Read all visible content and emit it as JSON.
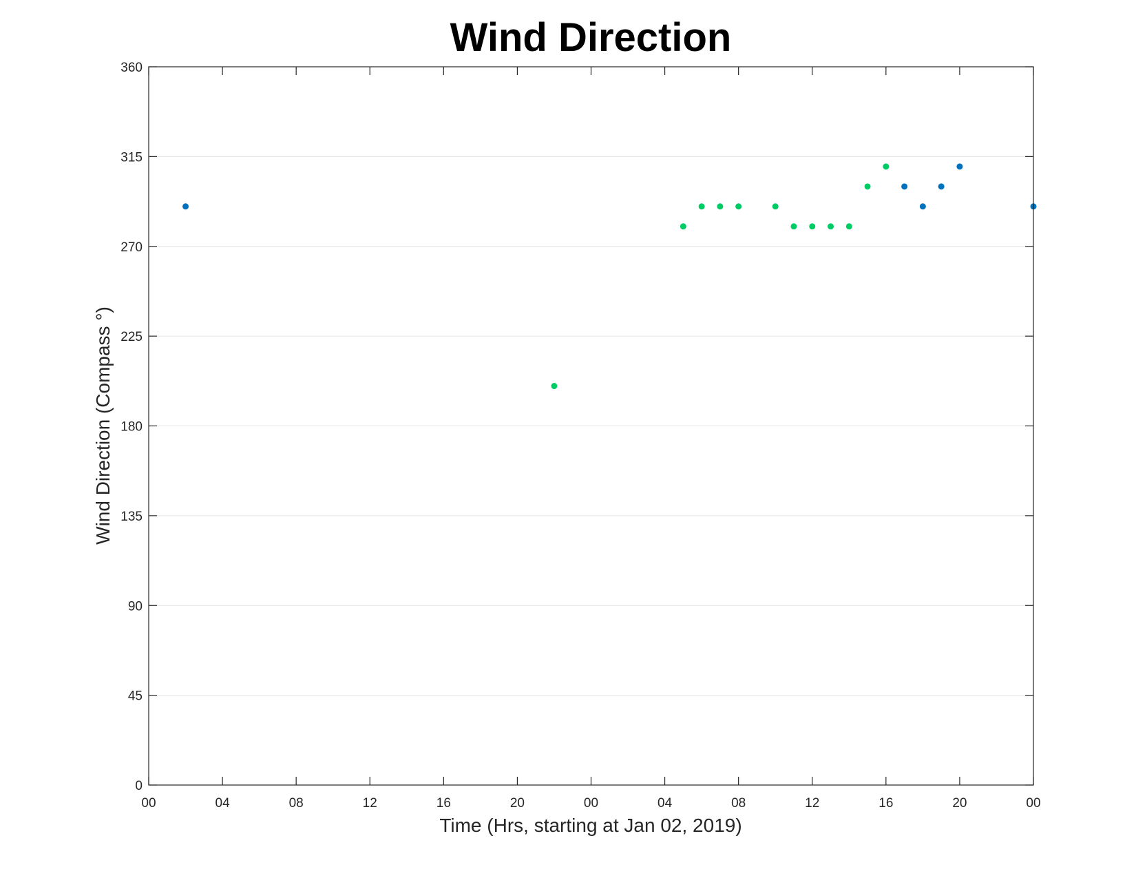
{
  "chart_data": {
    "type": "scatter",
    "title": "Wind Direction",
    "xlabel": "Time (Hrs, starting at Jan 02, 2019)",
    "ylabel": "Wind Direction (Compass °)",
    "xlim": [
      0,
      48
    ],
    "ylim": [
      0,
      360
    ],
    "x_ticks": [
      "00",
      "04",
      "08",
      "12",
      "16",
      "20",
      "00",
      "04",
      "08",
      "12",
      "16",
      "20",
      "00"
    ],
    "x_tick_hours": [
      0,
      4,
      8,
      12,
      16,
      20,
      24,
      28,
      32,
      36,
      40,
      44,
      48
    ],
    "y_ticks": [
      0,
      45,
      90,
      135,
      180,
      225,
      270,
      315,
      360
    ],
    "grid": "horizontal",
    "colors": {
      "blue": "#0072BD",
      "green": "#00CC66"
    },
    "series": [
      {
        "color": "#0072BD",
        "x": [
          2,
          41,
          42,
          43,
          44,
          48
        ],
        "y": [
          290,
          300,
          290,
          300,
          310,
          290
        ]
      },
      {
        "color": "#00CC66",
        "x": [
          22,
          29,
          30,
          31,
          32,
          34,
          35,
          36,
          37,
          38,
          39,
          40
        ],
        "y": [
          200,
          280,
          290,
          290,
          290,
          290,
          280,
          280,
          280,
          280,
          300,
          310
        ]
      }
    ]
  }
}
